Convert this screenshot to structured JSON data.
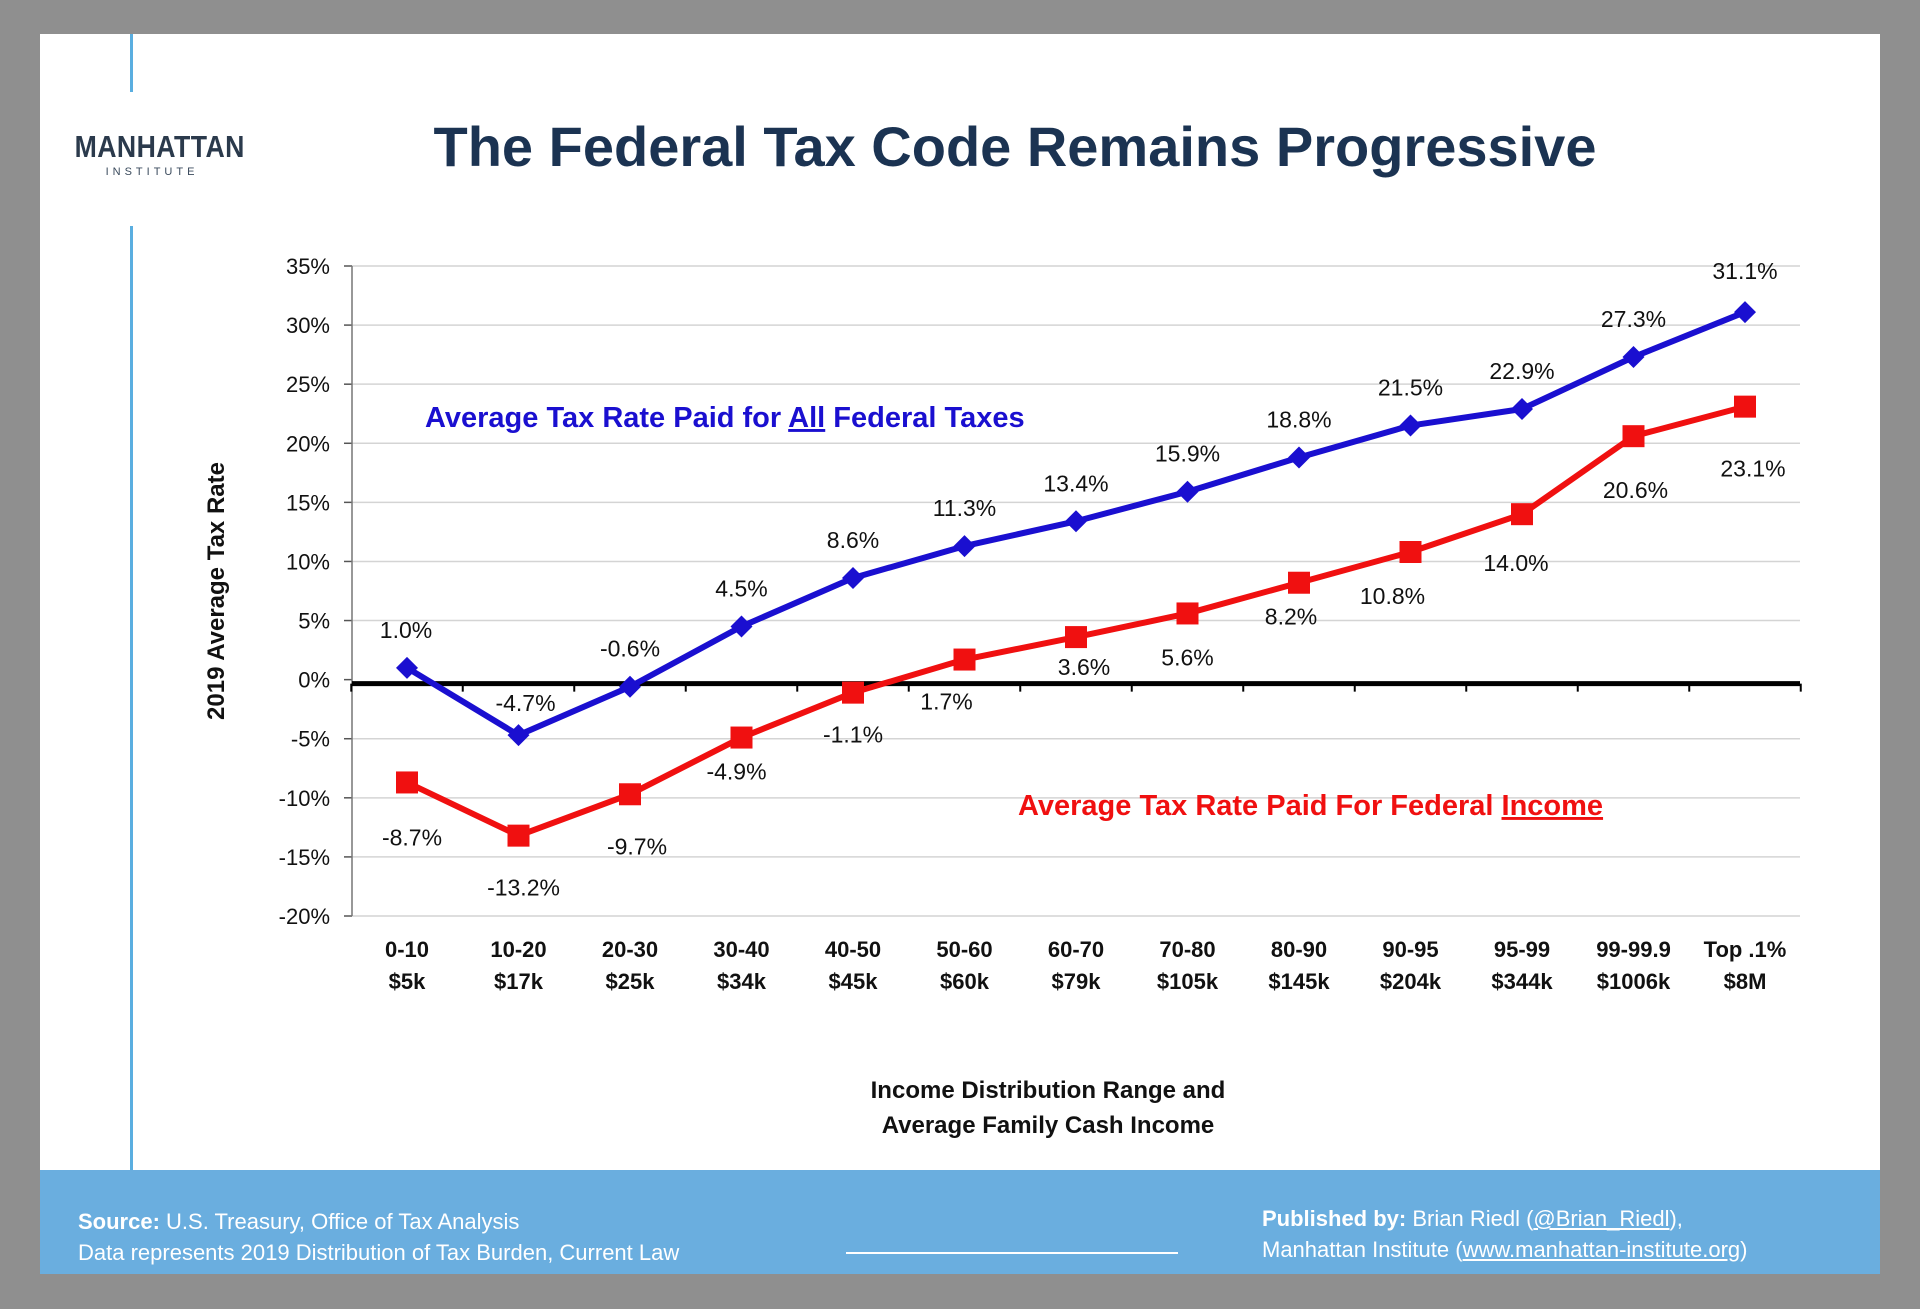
{
  "logo": {
    "line1": "MANHATTAN",
    "line2": "INSTITUTE"
  },
  "title": "The Federal Tax Code Remains Progressive",
  "chart_data": {
    "type": "line",
    "ylabel": "2019 Average Tax Rate",
    "xlabel_line1": "Income Distribution Range and",
    "xlabel_line2": "Average Family Cash Income",
    "ylim": [
      -20,
      35
    ],
    "yticks": [
      35,
      30,
      25,
      20,
      15,
      10,
      5,
      0,
      -5,
      -10,
      -15,
      -20
    ],
    "ytick_labels": [
      "35%",
      "30%",
      "25%",
      "20%",
      "15%",
      "10%",
      "5%",
      "0%",
      "-5%",
      "-10%",
      "-15%",
      "-20%"
    ],
    "grid": true,
    "categories": [
      {
        "range": "0-10",
        "income": "$5k"
      },
      {
        "range": "10-20",
        "income": "$17k"
      },
      {
        "range": "20-30",
        "income": "$25k"
      },
      {
        "range": "30-40",
        "income": "$34k"
      },
      {
        "range": "40-50",
        "income": "$45k"
      },
      {
        "range": "50-60",
        "income": "$60k"
      },
      {
        "range": "60-70",
        "income": "$79k"
      },
      {
        "range": "70-80",
        "income": "$105k"
      },
      {
        "range": "80-90",
        "income": "$145k"
      },
      {
        "range": "90-95",
        "income": "$204k"
      },
      {
        "range": "95-99",
        "income": "$344k"
      },
      {
        "range": "99-99.9",
        "income": "$1006k"
      },
      {
        "range": "Top .1%",
        "income": "$8M"
      }
    ],
    "series": [
      {
        "name_pre": "Average Tax Rate Paid for ",
        "name_underlined": "All",
        "name_post": " Federal Taxes",
        "color": "#1a0fd0",
        "marker": "diamond",
        "values": [
          1.0,
          -4.7,
          -0.6,
          4.5,
          8.6,
          11.3,
          13.4,
          15.9,
          18.8,
          21.5,
          22.9,
          27.3,
          31.1
        ],
        "labels": [
          "1.0%",
          "-4.7%",
          "-0.6%",
          "4.5%",
          "8.6%",
          "11.3%",
          "13.4%",
          "15.9%",
          "18.8%",
          "21.5%",
          "22.9%",
          "27.3%",
          "31.1%"
        ]
      },
      {
        "name_pre": "Average Tax Rate Paid For Federal ",
        "name_underlined": "Income",
        "name_post": "",
        "color": "#f01010",
        "marker": "square",
        "values": [
          -8.7,
          -13.2,
          -9.7,
          -4.9,
          -1.1,
          1.7,
          3.6,
          5.6,
          8.2,
          10.8,
          14.0,
          20.6,
          23.1
        ],
        "labels": [
          "-8.7%",
          "-13.2%",
          "-9.7%",
          "-4.9%",
          "-1.1%",
          "1.7%",
          "3.6%",
          "5.6%",
          "8.2%",
          "10.8%",
          "14.0%",
          "20.6%",
          "23.1%"
        ]
      }
    ]
  },
  "footer": {
    "source_label": "Source:",
    "source_text": " U.S. Treasury, Office of Tax Analysis",
    "source_line2": "Data represents 2019 Distribution of Tax Burden, Current Law",
    "published_label": "Published by:",
    "published_text": " Brian Riedl (",
    "twitter": "@Brian_Riedl",
    "published_close": "),",
    "org": "Manhattan Institute (",
    "url": "www.manhattan-institute.org",
    "org_close": ")"
  }
}
